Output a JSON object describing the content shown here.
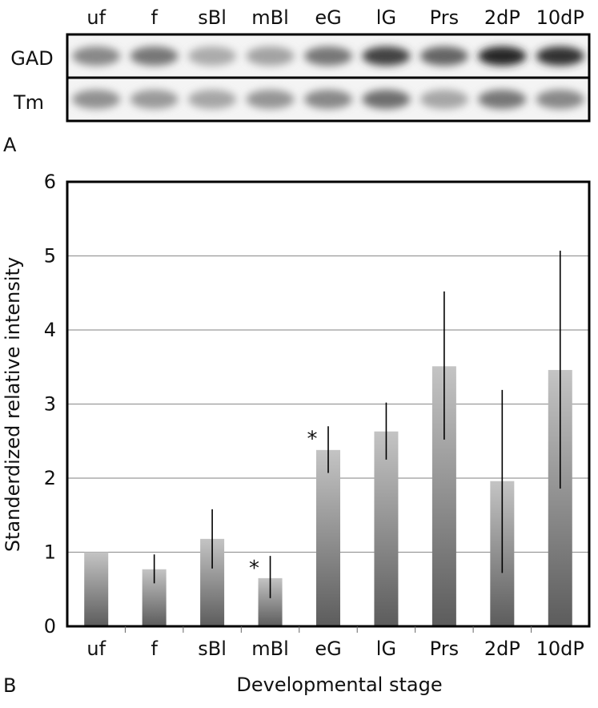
{
  "panel_a": {
    "label": "A",
    "lanes": [
      "uf",
      "f",
      "sBl",
      "mBl",
      "eG",
      "lG",
      "Prs",
      "2dP",
      "10dP"
    ],
    "rows": [
      {
        "label": "GAD",
        "intensity": [
          0.45,
          0.55,
          0.25,
          0.3,
          0.55,
          0.85,
          0.65,
          1.0,
          0.95
        ]
      },
      {
        "label": "Tm",
        "intensity": [
          0.4,
          0.35,
          0.28,
          0.38,
          0.45,
          0.6,
          0.28,
          0.55,
          0.45
        ]
      }
    ]
  },
  "panel_b": {
    "label": "B"
  },
  "chart_data": {
    "type": "bar",
    "categories": [
      "uf",
      "f",
      "sBl",
      "mBl",
      "eG",
      "lG",
      "Prs",
      "2dP",
      "10dP"
    ],
    "values": [
      1.0,
      0.77,
      1.18,
      0.65,
      2.38,
      2.63,
      3.51,
      1.96,
      3.46
    ],
    "error_low": [
      1.0,
      0.58,
      0.78,
      0.38,
      2.07,
      2.25,
      2.52,
      0.72,
      1.86
    ],
    "error_high": [
      1.0,
      0.97,
      1.58,
      0.95,
      2.7,
      3.02,
      4.52,
      3.19,
      5.07
    ],
    "significant": [
      false,
      false,
      false,
      true,
      true,
      false,
      false,
      false,
      false
    ],
    "significance_marker": "*",
    "xlabel": "Developmental stage",
    "ylabel": "Standerdized relative intensity",
    "ylim": [
      0,
      6
    ],
    "yticks": [
      "0",
      "1",
      "2",
      "3",
      "4",
      "5",
      "6"
    ],
    "grid": true
  }
}
